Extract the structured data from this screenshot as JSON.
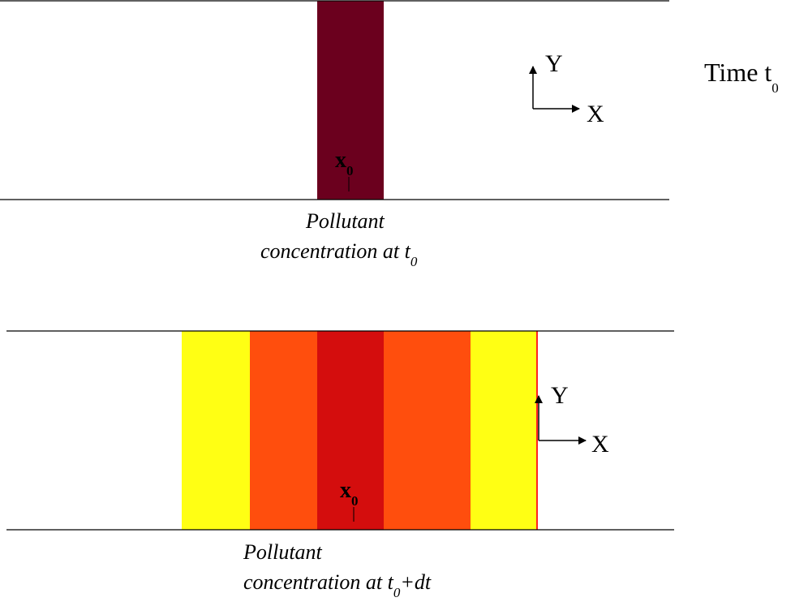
{
  "time_label": {
    "main": "Time t",
    "sub": "0"
  },
  "panel_top": {
    "band_color": "#6b001e",
    "marker": {
      "main": "x",
      "sub": "0"
    },
    "axes": {
      "x": "X",
      "y": "Y"
    },
    "caption": {
      "line1": "Pollutant",
      "line2_main": "concentration at t",
      "line2_sub": "0",
      "line2_suffix": ""
    }
  },
  "panel_bottom": {
    "band_colors": {
      "outer": "#ffff14",
      "middle": "#ff4e0d",
      "core": "#d40d0d",
      "edge": "#ff2020"
    },
    "marker": {
      "main": "x",
      "sub": "0"
    },
    "axes": {
      "x": "X",
      "y": "Y"
    },
    "caption": {
      "line1": "Pollutant",
      "line2_main": "concentration at t",
      "line2_sub": "0",
      "line2_suffix": "+dt"
    }
  }
}
